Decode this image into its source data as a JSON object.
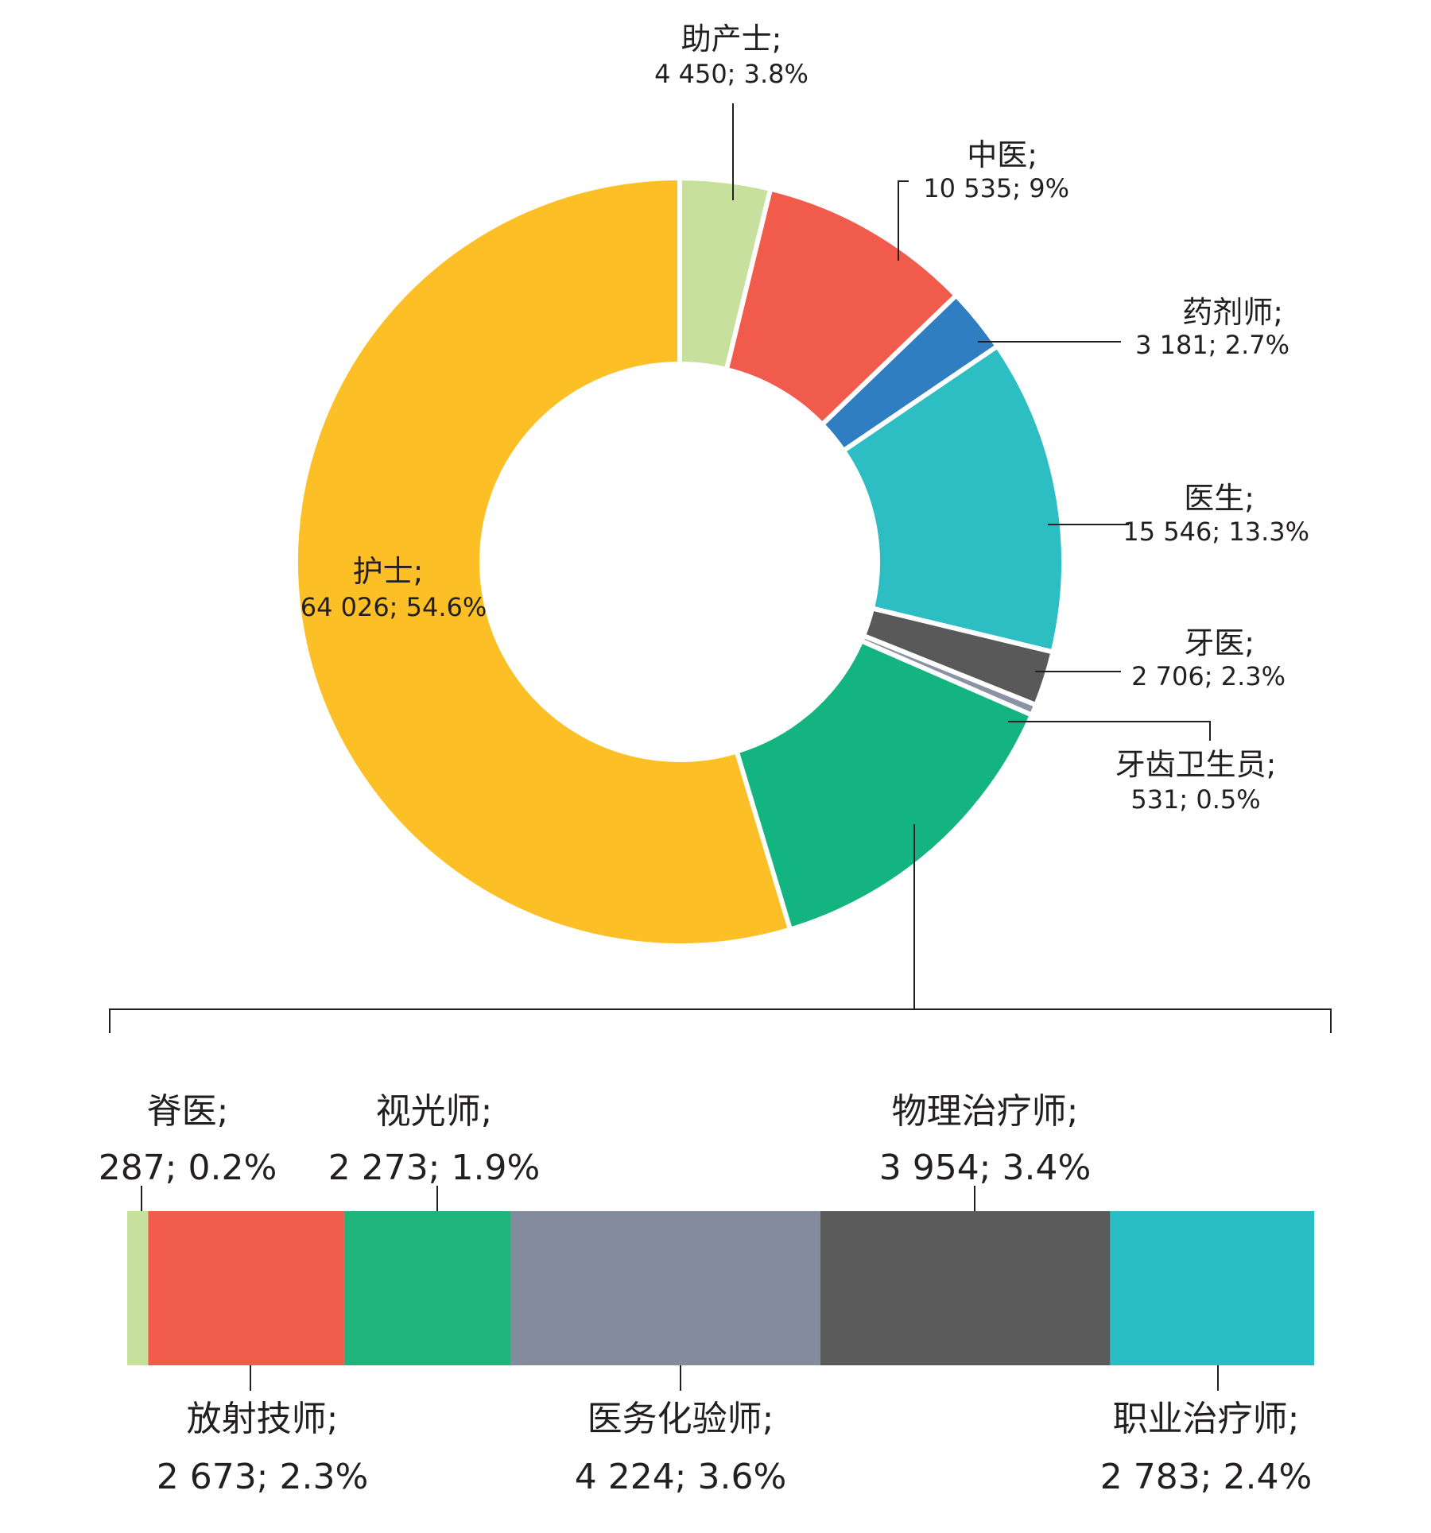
{
  "chart_data": [
    {
      "type": "pie",
      "variant": "donut",
      "slices": [
        {
          "label": "助产士;",
          "value": 4450,
          "value_text": "4 450; 3.8%",
          "percent": 3.8,
          "color": "#c8e09e"
        },
        {
          "label": "中医;",
          "value": 10535,
          "value_text": "10 535; 9%",
          "percent": 9.0,
          "color": "#f05b4b"
        },
        {
          "label": "药剂师;",
          "value": 3181,
          "value_text": "3 181; 2.7%",
          "percent": 2.7,
          "color": "#2e7ec1"
        },
        {
          "label": "医生;",
          "value": 15546,
          "value_text": "15 546; 13.3%",
          "percent": 13.3,
          "color": "#2dbec4"
        },
        {
          "label": "牙医;",
          "value": 2706,
          "value_text": "2 706; 2.3%",
          "percent": 2.3,
          "color": "#595959"
        },
        {
          "label": "牙齿卫生员;",
          "value": 531,
          "value_text": "531; 0.5%",
          "percent": 0.5,
          "color": "#8a93a3"
        },
        {
          "label": "",
          "value": 16194,
          "value_text": "",
          "percent": 13.8,
          "color": "#13b47f"
        },
        {
          "label": "护士;",
          "value": 64026,
          "value_text": "64 026; 54.6%",
          "percent": 54.6,
          "color": "#fdbf26"
        }
      ]
    },
    {
      "type": "bar",
      "variant": "stacked-horizontal",
      "segments": [
        {
          "label": "脊医;",
          "value": 287,
          "value_text": "287; 0.2%",
          "percent": 0.2,
          "color": "#c8e09e"
        },
        {
          "label": "放射技师;",
          "value": 2673,
          "value_text": "2 673; 2.3%",
          "percent": 2.3,
          "color": "#f05b4b"
        },
        {
          "label": "视光师;",
          "value": 2273,
          "value_text": "2 273; 1.9%",
          "percent": 1.9,
          "color": "#20b47d"
        },
        {
          "label": "医务化验师;",
          "value": 4224,
          "value_text": "4 224; 3.6%",
          "percent": 3.6,
          "color": "#828c9c"
        },
        {
          "label": "物理治疗师;",
          "value": 3954,
          "value_text": "3 954; 3.4%",
          "percent": 3.4,
          "color": "#5b5b5b"
        },
        {
          "label": "职业治疗师;",
          "value": 2783,
          "value_text": "2 783; 2.4%",
          "percent": 2.4,
          "color": "#28bfc4"
        }
      ]
    }
  ]
}
